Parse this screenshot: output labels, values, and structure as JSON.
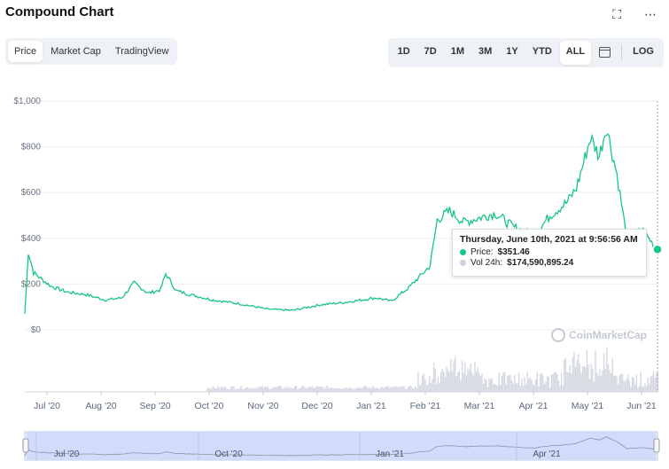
{
  "header": {
    "title": "Compound Chart",
    "fullscreen_icon": "expand-icon",
    "more_icon": "more-icon"
  },
  "view_tabs": [
    {
      "label": "Price",
      "active": true
    },
    {
      "label": "Market Cap",
      "active": false
    },
    {
      "label": "TradingView",
      "active": false
    }
  ],
  "range_tabs": [
    {
      "label": "1D",
      "active": false
    },
    {
      "label": "7D",
      "active": false
    },
    {
      "label": "1M",
      "active": false
    },
    {
      "label": "3M",
      "active": false
    },
    {
      "label": "1Y",
      "active": false
    },
    {
      "label": "YTD",
      "active": false
    },
    {
      "label": "ALL",
      "active": true
    }
  ],
  "calendar_icon": "calendar-icon",
  "log_label": "LOG",
  "tooltip": {
    "date": "Thursday, June 10th, 2021 at 9:56:56 AM",
    "price_label": "Price:",
    "price_value": "$351.46",
    "vol_label": "Vol 24h:",
    "vol_value": "$174,590,895.24"
  },
  "watermark": "CoinMarketCap",
  "colors": {
    "line": "#16c784",
    "volume": "#d4d8e0",
    "navigator": "#d3dbfb",
    "accent": "#16c784"
  },
  "chart_data": {
    "type": "line",
    "title": "",
    "ylim": [
      0,
      1000
    ],
    "y_ticks": [
      "$0",
      "$200",
      "$400",
      "$600",
      "$800",
      "$1,000"
    ],
    "x_ticks": [
      "Jul '20",
      "Aug '20",
      "Sep '20",
      "Oct '20",
      "Nov '20",
      "Dec '20",
      "Jan '21",
      "Feb '21",
      "Mar '21",
      "Apr '21",
      "May '21",
      "Jun '21"
    ],
    "navigator_ticks": [
      "Jul '20",
      "Oct '20",
      "Jan '21",
      "Apr '21"
    ],
    "series": [
      {
        "values": [
          {
            "x": "2020-06-16",
            "y": 70
          },
          {
            "x": "2020-06-18",
            "y": 340
          },
          {
            "x": "2020-06-21",
            "y": 250
          },
          {
            "x": "2020-06-25",
            "y": 225
          },
          {
            "x": "2020-07-01",
            "y": 190
          },
          {
            "x": "2020-07-10",
            "y": 165
          },
          {
            "x": "2020-07-20",
            "y": 155
          },
          {
            "x": "2020-08-01",
            "y": 130
          },
          {
            "x": "2020-08-10",
            "y": 140
          },
          {
            "x": "2020-08-17",
            "y": 205
          },
          {
            "x": "2020-08-25",
            "y": 160
          },
          {
            "x": "2020-09-01",
            "y": 175
          },
          {
            "x": "2020-09-04",
            "y": 245
          },
          {
            "x": "2020-09-10",
            "y": 170
          },
          {
            "x": "2020-09-20",
            "y": 150
          },
          {
            "x": "2020-10-01",
            "y": 130
          },
          {
            "x": "2020-10-15",
            "y": 115
          },
          {
            "x": "2020-11-01",
            "y": 90
          },
          {
            "x": "2020-11-15",
            "y": 85
          },
          {
            "x": "2020-12-01",
            "y": 110
          },
          {
            "x": "2020-12-15",
            "y": 120
          },
          {
            "x": "2021-01-01",
            "y": 140
          },
          {
            "x": "2021-01-10",
            "y": 125
          },
          {
            "x": "2021-01-20",
            "y": 185
          },
          {
            "x": "2021-02-01",
            "y": 280
          },
          {
            "x": "2021-02-05",
            "y": 480
          },
          {
            "x": "2021-02-12",
            "y": 520
          },
          {
            "x": "2021-02-20",
            "y": 470
          },
          {
            "x": "2021-03-01",
            "y": 490
          },
          {
            "x": "2021-03-10",
            "y": 510
          },
          {
            "x": "2021-03-20",
            "y": 450
          },
          {
            "x": "2021-04-01",
            "y": 410
          },
          {
            "x": "2021-04-10",
            "y": 500
          },
          {
            "x": "2021-04-20",
            "y": 560
          },
          {
            "x": "2021-04-25",
            "y": 620
          },
          {
            "x": "2021-05-03",
            "y": 840
          },
          {
            "x": "2021-05-08",
            "y": 760
          },
          {
            "x": "2021-05-12",
            "y": 890
          },
          {
            "x": "2021-05-18",
            "y": 680
          },
          {
            "x": "2021-05-24",
            "y": 380
          },
          {
            "x": "2021-06-01",
            "y": 440
          },
          {
            "x": "2021-06-10",
            "y": 351.46
          }
        ]
      }
    ]
  }
}
